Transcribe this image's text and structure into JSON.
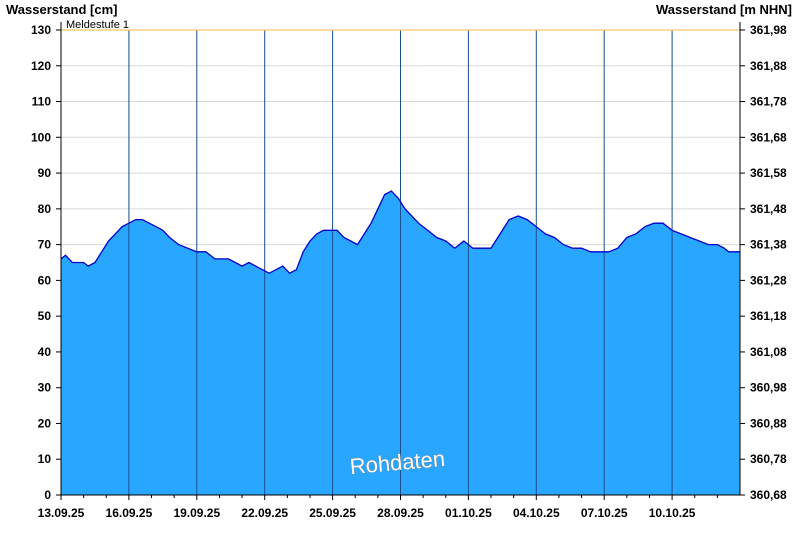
{
  "chart_data": {
    "type": "area",
    "ylabel_left": "Wasserstand [cm]",
    "ylabel_right": "Wasserstand [m NHN]",
    "ylim": [
      0,
      130
    ],
    "y_ticks_left": [
      0,
      10,
      20,
      30,
      40,
      50,
      60,
      70,
      80,
      90,
      100,
      110,
      120,
      130
    ],
    "y_ticks_right": [
      "360,68",
      "360,78",
      "360,88",
      "360,98",
      "361,08",
      "361,18",
      "361,28",
      "361,38",
      "361,48",
      "361,58",
      "361,68",
      "361,78",
      "361,88",
      "361,98"
    ],
    "x_start": "13.09.25",
    "x_end": "12.10.25",
    "x_ticks": [
      "13.09.25",
      "16.09.25",
      "19.09.25",
      "22.09.25",
      "25.09.25",
      "28.09.25",
      "01.10.25",
      "04.10.25",
      "07.10.25",
      "10.10.25"
    ],
    "grid": true,
    "threshold": {
      "label": "Meldestufe 1",
      "value": 130,
      "color": "#f5c66b"
    },
    "series": [
      {
        "fill_color": "#29a6ff",
        "line_color": "#0000cc",
        "days": [
          0,
          0.2,
          0.5,
          0.8,
          1.0,
          1.2,
          1.5,
          1.8,
          2.1,
          2.4,
          2.7,
          3.0,
          3.3,
          3.6,
          3.9,
          4.2,
          4.5,
          4.8,
          5.2,
          5.6,
          6.0,
          6.4,
          6.8,
          7.1,
          7.4,
          7.7,
          8.0,
          8.3,
          8.6,
          8.9,
          9.2,
          9.5,
          9.8,
          10.1,
          10.4,
          10.7,
          11.0,
          11.3,
          11.6,
          11.9,
          12.2,
          12.5,
          12.8,
          13.1,
          13.4,
          13.7,
          14.0,
          14.3,
          14.6,
          14.9,
          15.2,
          15.5,
          15.8,
          16.2,
          16.6,
          17.0,
          17.4,
          17.8,
          18.2,
          18.6,
          19.0,
          19.4,
          19.8,
          20.2,
          20.6,
          21.0,
          21.4,
          21.8,
          22.2,
          22.6,
          23.0,
          23.4,
          23.8,
          24.2,
          24.6,
          25.0,
          25.4,
          25.8,
          26.2,
          26.6,
          27.0,
          27.4,
          27.8,
          28.2,
          28.6,
          29.0,
          29.3,
          29.5,
          30.0
        ],
        "values": [
          66,
          67,
          65,
          65,
          65,
          64,
          65,
          68,
          71,
          73,
          75,
          76,
          77,
          77,
          76,
          75,
          74,
          72,
          70,
          69,
          68,
          68,
          66,
          66,
          66,
          65,
          64,
          65,
          64,
          63,
          62,
          63,
          64,
          62,
          63,
          68,
          71,
          73,
          74,
          74,
          74,
          72,
          71,
          70,
          73,
          76,
          80,
          84,
          85,
          83,
          80,
          78,
          76,
          74,
          72,
          71,
          69,
          71,
          69,
          69,
          69,
          73,
          77,
          78,
          77,
          75,
          73,
          72,
          70,
          69,
          69,
          68,
          68,
          68,
          69,
          72,
          73,
          75,
          76,
          76,
          74,
          73,
          72,
          71,
          70,
          70,
          69,
          68,
          68
        ]
      }
    ],
    "annotation": "Rohdaten"
  }
}
